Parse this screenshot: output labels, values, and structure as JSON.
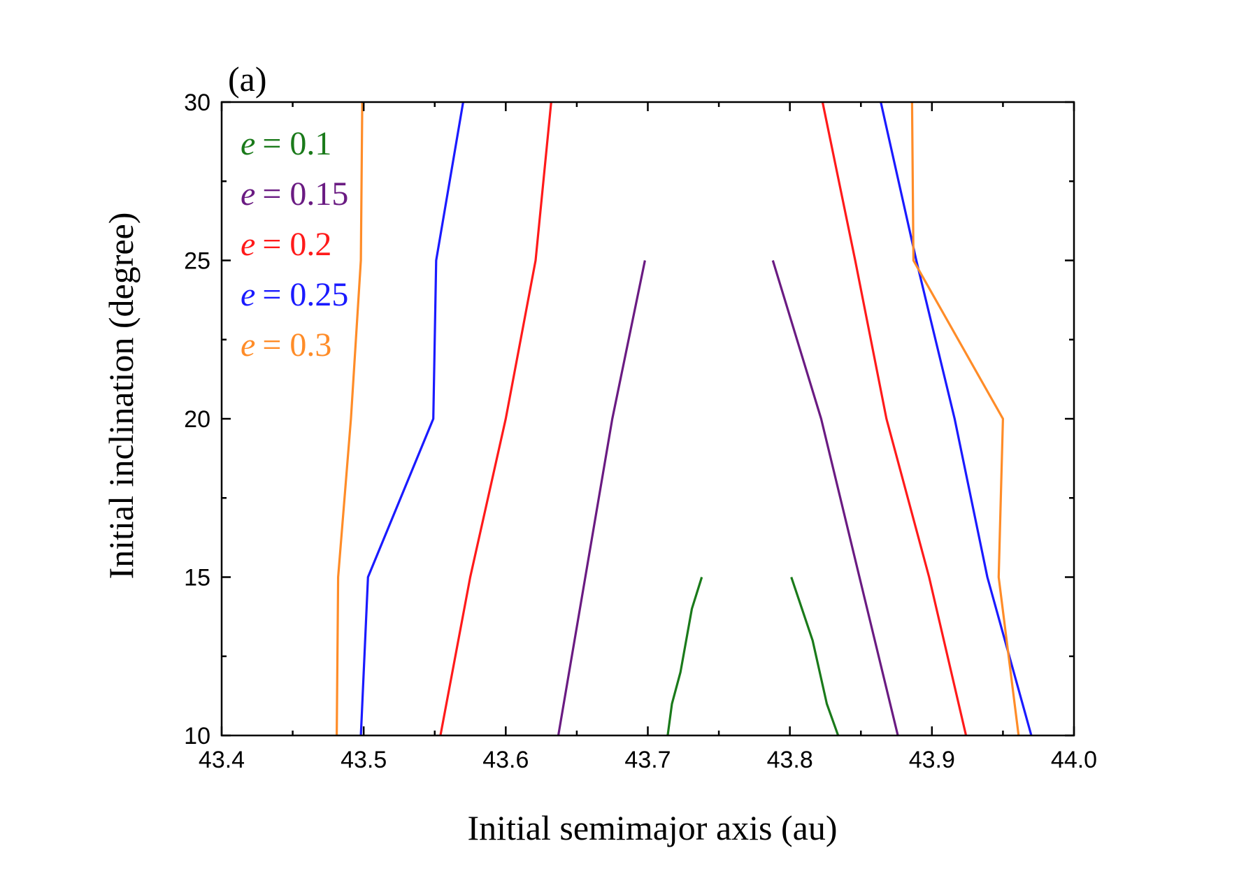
{
  "chart_data": {
    "type": "line",
    "panel_label": "(a)",
    "xlabel": "Initial semimajor axis (au)",
    "ylabel": "Initial inclination (degree)",
    "xlim": [
      43.4,
      44.0
    ],
    "ylim": [
      10,
      30
    ],
    "xticks": [
      "43.4",
      "43.5",
      "43.6",
      "43.7",
      "43.8",
      "43.9",
      "44.0"
    ],
    "yticks": [
      "10",
      "15",
      "20",
      "25",
      "30"
    ],
    "legend_position": "top-left",
    "series": [
      {
        "name": "e = 0.1",
        "var": "e",
        "value_text": "= 0.1",
        "color": "#1a7a1a",
        "branches": [
          [
            [
              43.714,
              10
            ],
            [
              43.717,
              11
            ],
            [
              43.723,
              12
            ],
            [
              43.731,
              14
            ],
            [
              43.738,
              15
            ]
          ],
          [
            [
              43.801,
              15
            ],
            [
              43.816,
              13
            ],
            [
              43.826,
              11
            ],
            [
              43.834,
              10
            ]
          ]
        ]
      },
      {
        "name": "e = 0.15",
        "var": "e",
        "value_text": "= 0.15",
        "color": "#6a1b82",
        "branches": [
          [
            [
              43.637,
              10
            ],
            [
              43.656,
              15
            ],
            [
              43.675,
              20
            ],
            [
              43.698,
              25
            ]
          ],
          [
            [
              43.788,
              25
            ],
            [
              43.822,
              20
            ],
            [
              43.849,
              15
            ],
            [
              43.876,
              10
            ]
          ]
        ]
      },
      {
        "name": "e = 0.2",
        "var": "e",
        "value_text": "= 0.2",
        "color": "#ff1a1a",
        "branches": [
          [
            [
              43.554,
              10
            ],
            [
              43.575,
              15
            ],
            [
              43.6,
              20
            ],
            [
              43.621,
              25
            ],
            [
              43.632,
              30
            ]
          ],
          [
            [
              43.823,
              30
            ],
            [
              43.846,
              25
            ],
            [
              43.868,
              20
            ],
            [
              43.898,
              15
            ],
            [
              43.924,
              10
            ]
          ]
        ]
      },
      {
        "name": "e = 0.25",
        "var": "e",
        "value_text": "= 0.25",
        "color": "#1a1aff",
        "branches": [
          [
            [
              43.498,
              10
            ],
            [
              43.503,
              15
            ],
            [
              43.549,
              20
            ],
            [
              43.551,
              25
            ],
            [
              43.57,
              30
            ]
          ],
          [
            [
              43.864,
              30
            ],
            [
              43.889,
              25
            ],
            [
              43.916,
              20
            ],
            [
              43.939,
              15
            ],
            [
              43.97,
              10
            ]
          ]
        ]
      },
      {
        "name": "e = 0.3",
        "var": "e",
        "value_text": "= 0.3",
        "color": "#ff8c28",
        "branches": [
          [
            [
              43.481,
              10
            ],
            [
              43.482,
              15
            ],
            [
              43.491,
              20
            ],
            [
              43.498,
              25
            ],
            [
              43.499,
              30
            ]
          ],
          [
            [
              43.886,
              30
            ],
            [
              43.887,
              25
            ],
            [
              43.95,
              20
            ],
            [
              43.947,
              15
            ],
            [
              43.961,
              10
            ]
          ]
        ]
      }
    ]
  }
}
